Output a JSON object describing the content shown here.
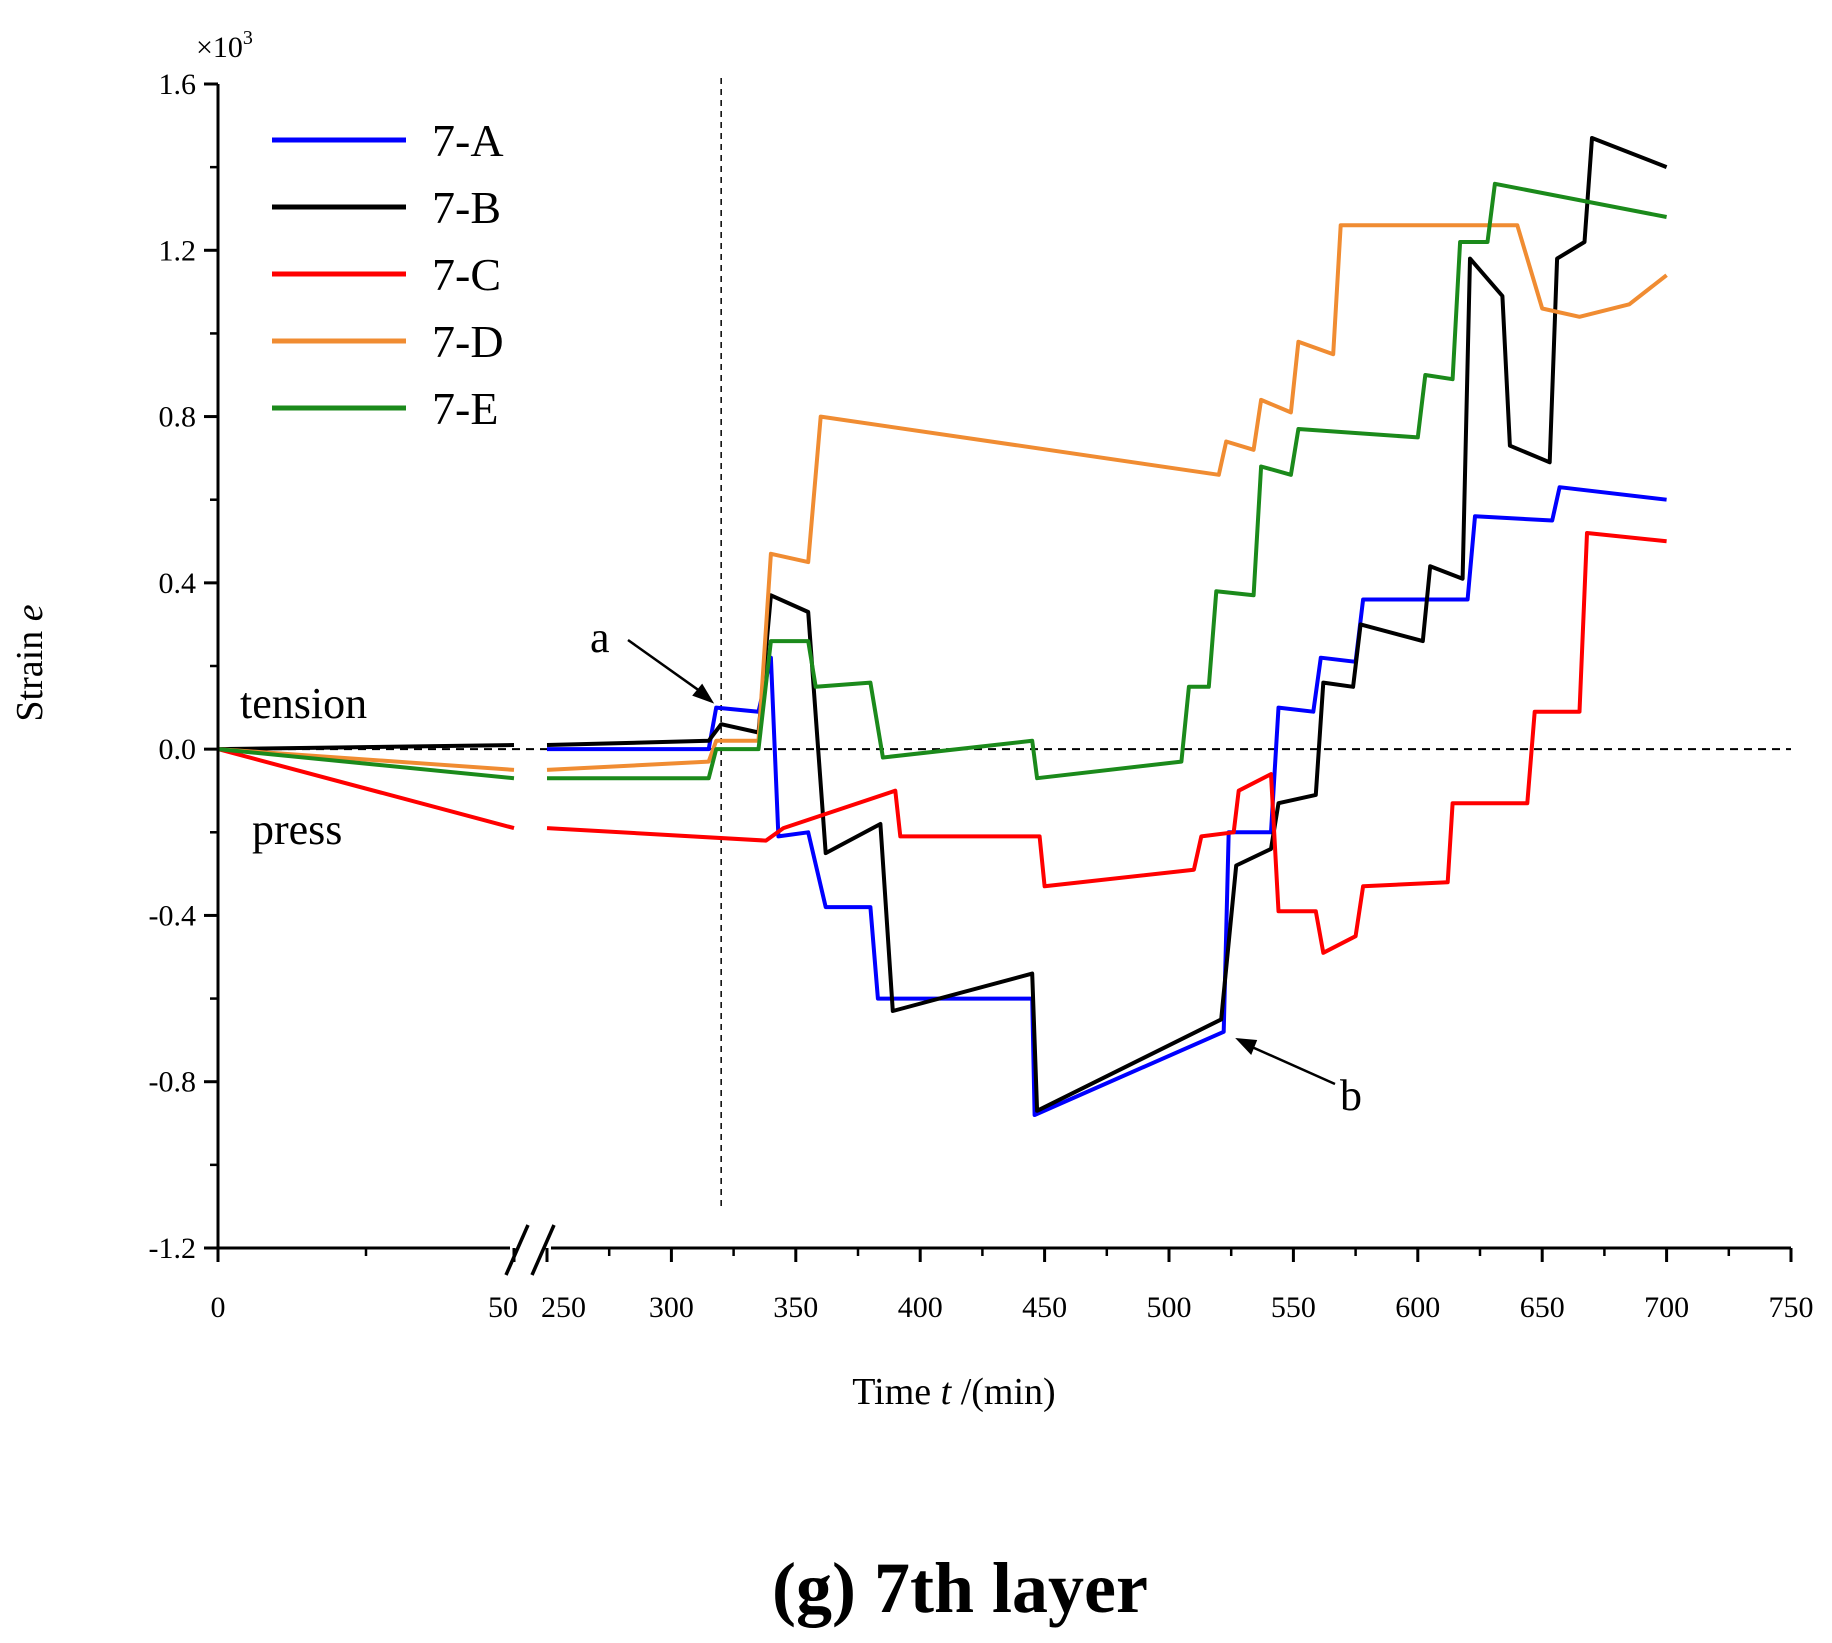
{
  "chart_data": {
    "type": "line",
    "caption": "(g) 7th layer",
    "xlabel_pre": "Time ",
    "xlabel_var": "t",
    "xlabel_post": " /(min)",
    "ylabel_pre": "Strain ",
    "ylabel_var": "e",
    "y_multiplier": "×10",
    "y_multiplier_exp": "3",
    "ylim": [
      -1.2,
      1.6
    ],
    "yticks": [
      "-1.2",
      "-0.8",
      "-0.4",
      "0.0",
      "0.4",
      "0.8",
      "1.2",
      "1.6"
    ],
    "yticks_values": [
      -1.2,
      -0.8,
      -0.4,
      0.0,
      0.4,
      0.8,
      1.2,
      1.6
    ],
    "x_segments": [
      {
        "range": [
          0,
          50
        ]
      },
      {
        "range": [
          250,
          750
        ]
      }
    ],
    "xticks": [
      {
        "value": 0,
        "label": "0"
      },
      {
        "value": 50,
        "label": "50"
      },
      {
        "value": 250,
        "label": "250"
      },
      {
        "value": 300,
        "label": "300"
      },
      {
        "value": 350,
        "label": "350"
      },
      {
        "value": 400,
        "label": "400"
      },
      {
        "value": 450,
        "label": "450"
      },
      {
        "value": 500,
        "label": "500"
      },
      {
        "value": 550,
        "label": "550"
      },
      {
        "value": 600,
        "label": "600"
      },
      {
        "value": 650,
        "label": "650"
      },
      {
        "value": 700,
        "label": "700"
      },
      {
        "value": 750,
        "label": "750"
      }
    ],
    "reference_lines": {
      "horizontal_y": 0.0,
      "vertical_x": 320
    },
    "annotations": {
      "tension": "tension",
      "press": "press",
      "a": {
        "text": "a",
        "points_to": [
          318,
          0.1
        ]
      },
      "b": {
        "text": "b",
        "points_to": [
          525,
          -0.69
        ]
      }
    },
    "legend_position": "top-left",
    "series": [
      {
        "name": "7-A",
        "color": "#0000ff",
        "points": [
          [
            0,
            0
          ],
          [
            250,
            0
          ],
          [
            315,
            0
          ],
          [
            318,
            0.1
          ],
          [
            335,
            0.09
          ],
          [
            340,
            0.22
          ],
          [
            343,
            -0.21
          ],
          [
            355,
            -0.2
          ],
          [
            362,
            -0.38
          ],
          [
            380,
            -0.38
          ],
          [
            383,
            -0.6
          ],
          [
            445,
            -0.6
          ],
          [
            446,
            -0.88
          ],
          [
            522,
            -0.68
          ],
          [
            524,
            -0.2
          ],
          [
            541,
            -0.2
          ],
          [
            544,
            0.1
          ],
          [
            558,
            0.09
          ],
          [
            561,
            0.22
          ],
          [
            575,
            0.21
          ],
          [
            578,
            0.36
          ],
          [
            620,
            0.36
          ],
          [
            623,
            0.56
          ],
          [
            654,
            0.55
          ],
          [
            657,
            0.63
          ],
          [
            700,
            0.6
          ]
        ]
      },
      {
        "name": "7-B",
        "color": "#000000",
        "points": [
          [
            0,
            0
          ],
          [
            50,
            0.01
          ],
          [
            250,
            0.01
          ],
          [
            315,
            0.02
          ],
          [
            320,
            0.06
          ],
          [
            335,
            0.04
          ],
          [
            340,
            0.37
          ],
          [
            355,
            0.33
          ],
          [
            362,
            -0.25
          ],
          [
            384,
            -0.18
          ],
          [
            389,
            -0.63
          ],
          [
            445,
            -0.54
          ],
          [
            447,
            -0.87
          ],
          [
            521,
            -0.65
          ],
          [
            527,
            -0.28
          ],
          [
            541,
            -0.24
          ],
          [
            544,
            -0.13
          ],
          [
            559,
            -0.11
          ],
          [
            562,
            0.16
          ],
          [
            574,
            0.15
          ],
          [
            577,
            0.3
          ],
          [
            602,
            0.26
          ],
          [
            605,
            0.44
          ],
          [
            618,
            0.41
          ],
          [
            621,
            1.18
          ],
          [
            634,
            1.09
          ],
          [
            637,
            0.73
          ],
          [
            653,
            0.69
          ],
          [
            656,
            1.18
          ],
          [
            667,
            1.22
          ],
          [
            670,
            1.47
          ],
          [
            700,
            1.4
          ]
        ]
      },
      {
        "name": "7-C",
        "color": "#ff0000",
        "points": [
          [
            0,
            0
          ],
          [
            50,
            -0.19
          ],
          [
            250,
            -0.19
          ],
          [
            338,
            -0.22
          ],
          [
            345,
            -0.19
          ],
          [
            390,
            -0.1
          ],
          [
            392,
            -0.21
          ],
          [
            448,
            -0.21
          ],
          [
            450,
            -0.33
          ],
          [
            510,
            -0.29
          ],
          [
            513,
            -0.21
          ],
          [
            526,
            -0.2
          ],
          [
            528,
            -0.1
          ],
          [
            541,
            -0.06
          ],
          [
            544,
            -0.39
          ],
          [
            559,
            -0.39
          ],
          [
            562,
            -0.49
          ],
          [
            575,
            -0.45
          ],
          [
            578,
            -0.33
          ],
          [
            612,
            -0.32
          ],
          [
            614,
            -0.13
          ],
          [
            644,
            -0.13
          ],
          [
            647,
            0.09
          ],
          [
            665,
            0.09
          ],
          [
            668,
            0.52
          ],
          [
            700,
            0.5
          ]
        ]
      },
      {
        "name": "7-D",
        "color": "#f08c32",
        "points": [
          [
            0,
            0
          ],
          [
            50,
            -0.05
          ],
          [
            250,
            -0.05
          ],
          [
            315,
            -0.03
          ],
          [
            318,
            0.02
          ],
          [
            335,
            0.02
          ],
          [
            340,
            0.47
          ],
          [
            355,
            0.45
          ],
          [
            360,
            0.8
          ],
          [
            520,
            0.66
          ],
          [
            523,
            0.74
          ],
          [
            534,
            0.72
          ],
          [
            537,
            0.84
          ],
          [
            549,
            0.81
          ],
          [
            552,
            0.98
          ],
          [
            566,
            0.95
          ],
          [
            569,
            1.26
          ],
          [
            620,
            1.26
          ],
          [
            640,
            1.26
          ],
          [
            650,
            1.06
          ],
          [
            665,
            1.04
          ],
          [
            685,
            1.07
          ],
          [
            700,
            1.14
          ]
        ]
      },
      {
        "name": "7-E",
        "color": "#1b8a1b",
        "points": [
          [
            0,
            0
          ],
          [
            50,
            -0.07
          ],
          [
            250,
            -0.07
          ],
          [
            315,
            -0.07
          ],
          [
            318,
            0.0
          ],
          [
            335,
            0.0
          ],
          [
            340,
            0.26
          ],
          [
            355,
            0.26
          ],
          [
            358,
            0.15
          ],
          [
            380,
            0.16
          ],
          [
            385,
            -0.02
          ],
          [
            445,
            0.02
          ],
          [
            447,
            -0.07
          ],
          [
            505,
            -0.03
          ],
          [
            508,
            0.15
          ],
          [
            516,
            0.15
          ],
          [
            519,
            0.38
          ],
          [
            534,
            0.37
          ],
          [
            537,
            0.68
          ],
          [
            549,
            0.66
          ],
          [
            552,
            0.77
          ],
          [
            600,
            0.75
          ],
          [
            603,
            0.9
          ],
          [
            614,
            0.89
          ],
          [
            617,
            1.22
          ],
          [
            628,
            1.22
          ],
          [
            631,
            1.36
          ],
          [
            700,
            1.28
          ]
        ]
      }
    ]
  }
}
